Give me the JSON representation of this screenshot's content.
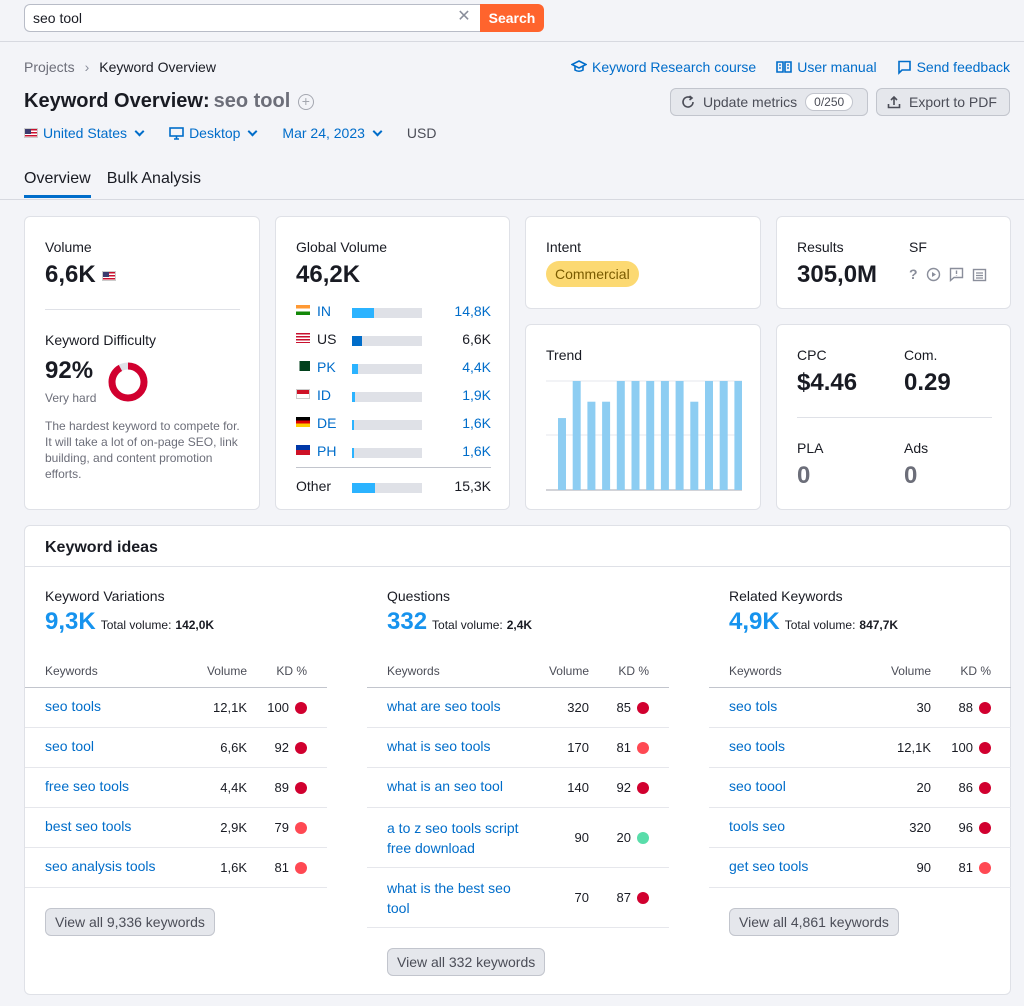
{
  "search": {
    "value": "seo tool",
    "button": "Search"
  },
  "breadcrumb": {
    "projects": "Projects",
    "current": "Keyword Overview"
  },
  "top_links": {
    "course": "Keyword Research course",
    "manual": "User manual",
    "feedback": "Send feedback"
  },
  "header": {
    "title": "Keyword Overview:",
    "keyword": "seo tool",
    "update_label": "Update metrics",
    "update_count": "0/250",
    "export_label": "Export to PDF"
  },
  "filters": {
    "country": "United States",
    "device": "Desktop",
    "date": "Mar 24, 2023",
    "currency": "USD"
  },
  "tabs": [
    "Overview",
    "Bulk Analysis"
  ],
  "volume": {
    "label": "Volume",
    "value": "6,6K"
  },
  "kd": {
    "label": "Keyword Difficulty",
    "value": "92%",
    "level": "Very hard",
    "percent": 92,
    "description": "The hardest keyword to compete for. It will take a lot of on-page SEO, link building, and content promotion efforts."
  },
  "global_volume": {
    "label": "Global Volume",
    "value": "46,2K",
    "rows": [
      {
        "code": "IN",
        "value": "14,8K",
        "share": 0.32,
        "link": true,
        "flag": "in"
      },
      {
        "code": "US",
        "value": "6,6K",
        "share": 0.14,
        "link": false,
        "flag": "us"
      },
      {
        "code": "PK",
        "value": "4,4K",
        "share": 0.09,
        "link": true,
        "flag": "pk"
      },
      {
        "code": "ID",
        "value": "1,9K",
        "share": 0.04,
        "link": true,
        "flag": "id"
      },
      {
        "code": "DE",
        "value": "1,6K",
        "share": 0.035,
        "link": true,
        "flag": "de"
      },
      {
        "code": "PH",
        "value": "1,6K",
        "share": 0.035,
        "link": true,
        "flag": "ph"
      }
    ],
    "other": {
      "label": "Other",
      "value": "15,3K",
      "share": 0.33
    }
  },
  "intent": {
    "label": "Intent",
    "value": "Commercial"
  },
  "trend": {
    "label": "Trend",
    "values": [
      0.66,
      1,
      0.81,
      0.81,
      1,
      1,
      1,
      1,
      1,
      0.81,
      1,
      1,
      1
    ]
  },
  "results": {
    "label": "Results",
    "value": "305,0M",
    "sf_label": "SF"
  },
  "cpc": {
    "cpc_label": "CPC",
    "cpc_value": "$4.46",
    "com_label": "Com.",
    "com_value": "0.29",
    "pla_label": "PLA",
    "pla_value": "0",
    "ads_label": "Ads",
    "ads_value": "0"
  },
  "ideas": {
    "title": "Keyword ideas",
    "col_keywords": "Keywords",
    "col_volume": "Volume",
    "col_kd": "KD %",
    "total_label": "Total volume:",
    "columns": [
      {
        "name": "Keyword Variations",
        "count": "9,3K",
        "total": "142,0K",
        "rows": [
          {
            "kw": "seo tools",
            "vol": "12,1K",
            "kd": "100",
            "color": "#d1002f"
          },
          {
            "kw": "seo tool",
            "vol": "6,6K",
            "kd": "92",
            "color": "#d1002f"
          },
          {
            "kw": "free seo tools",
            "vol": "4,4K",
            "kd": "89",
            "color": "#d1002f"
          },
          {
            "kw": "best seo tools",
            "vol": "2,9K",
            "kd": "79",
            "color": "#ff4953"
          },
          {
            "kw": "seo analysis tools",
            "vol": "1,6K",
            "kd": "81",
            "color": "#ff4953"
          }
        ],
        "button": "View all 9,336 keywords"
      },
      {
        "name": "Questions",
        "count": "332",
        "total": "2,4K",
        "rows": [
          {
            "kw": "what are seo tools",
            "vol": "320",
            "kd": "85",
            "color": "#d1002f"
          },
          {
            "kw": "what is seo tools",
            "vol": "170",
            "kd": "81",
            "color": "#ff4953"
          },
          {
            "kw": "what is an seo tool",
            "vol": "140",
            "kd": "92",
            "color": "#d1002f"
          },
          {
            "kw": "a to z seo tools script free download",
            "vol": "90",
            "kd": "20",
            "color": "#59ddaa"
          },
          {
            "kw": "what is the best seo tool",
            "vol": "70",
            "kd": "87",
            "color": "#d1002f"
          }
        ],
        "button": "View all 332 keywords"
      },
      {
        "name": "Related Keywords",
        "count": "4,9K",
        "total": "847,7K",
        "rows": [
          {
            "kw": "seo tols",
            "vol": "30",
            "kd": "88",
            "color": "#d1002f"
          },
          {
            "kw": "seo tools",
            "vol": "12,1K",
            "kd": "100",
            "color": "#d1002f"
          },
          {
            "kw": "seo toool",
            "vol": "20",
            "kd": "86",
            "color": "#d1002f"
          },
          {
            "kw": "tools seo",
            "vol": "320",
            "kd": "96",
            "color": "#d1002f"
          },
          {
            "kw": "get seo tools",
            "vol": "90",
            "kd": "81",
            "color": "#ff4953"
          }
        ],
        "button": "View all 4,861 keywords"
      }
    ]
  }
}
